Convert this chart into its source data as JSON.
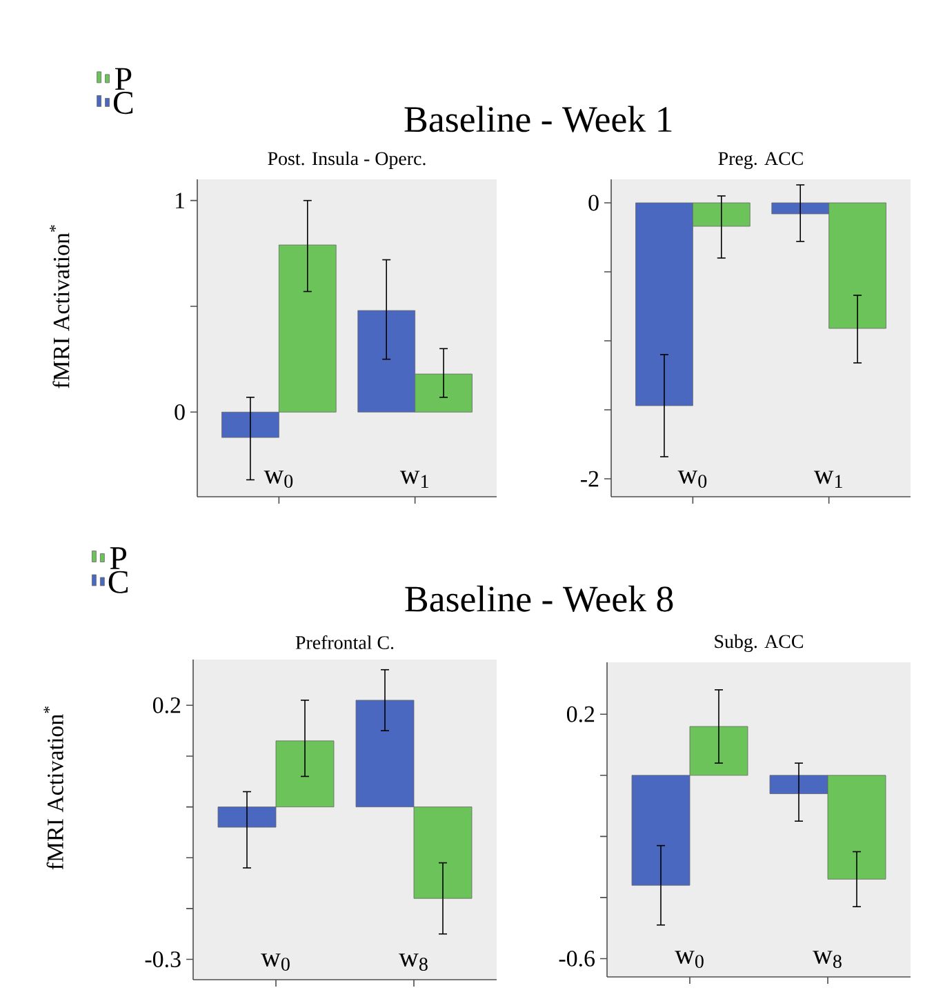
{
  "chart_data": [
    {
      "type": "bar",
      "title": "Baseline - Week 1",
      "subtitle": "Post. Insula - Operc.",
      "ylabel": "fMRI Activation$^{*}$",
      "categories": [
        "w$_{0}$",
        "w$_{1}$"
      ],
      "ylim": [
        -0.4,
        1.1
      ],
      "yticks": [
        0,
        {
          "value": 0.5,
          "label": null
        },
        1
      ],
      "legend": "top left",
      "series": [
        {
          "name": "C",
          "color": "#4a68c0",
          "values": [
            -0.12,
            0.48
          ],
          "errors": [
            [
              -0.32,
              0.07
            ],
            [
              0.25,
              0.72
            ]
          ]
        },
        {
          "name": "P",
          "color": "#6cc35a",
          "values": [
            0.79,
            0.18
          ],
          "errors": [
            [
              0.57,
              1.0
            ],
            [
              0.07,
              0.3
            ]
          ]
        }
      ]
    },
    {
      "type": "bar",
      "subtitle": "Preg. ACC",
      "categories": [
        "w$_{0}$",
        "w$_{1}$"
      ],
      "ylim": [
        -2.13,
        0.17
      ],
      "yticks": [
        -2,
        {
          "value": -1.5,
          "label": null
        },
        {
          "value": -1,
          "label": null
        },
        {
          "value": -0.5,
          "label": null
        },
        0
      ],
      "series": [
        {
          "color": "#4a68c0",
          "values": [
            -1.47,
            -0.08
          ],
          "errors": [
            [
              -1.84,
              -1.1
            ],
            [
              -0.28,
              0.13
            ]
          ]
        },
        {
          "color": "#6cc35a",
          "values": [
            -0.17,
            -0.91
          ],
          "errors": [
            [
              -0.4,
              0.05
            ],
            [
              -1.16,
              -0.67
            ]
          ]
        }
      ]
    },
    {
      "type": "bar",
      "title": "Baseline - Week 8",
      "subtitle": "Prefrontal C.",
      "ylabel": "fMRI Activation$^{*}$",
      "categories": [
        "w$_{0}$",
        "w$_{8}$"
      ],
      "ylim": [
        -0.34,
        0.29
      ],
      "yticks": [
        -0.3,
        {
          "value": -0.2,
          "label": null
        },
        {
          "value": -0.1,
          "label": null
        },
        {
          "value": 0,
          "label": null
        },
        {
          "value": 0.1,
          "label": null
        },
        0.2
      ],
      "legend": "top left",
      "series": [
        {
          "name": "C",
          "color": "#4a68c0",
          "values": [
            -0.04,
            0.21
          ],
          "errors": [
            [
              -0.12,
              0.03
            ],
            [
              0.15,
              0.27
            ]
          ]
        },
        {
          "name": "P",
          "color": "#6cc35a",
          "values": [
            0.13,
            -0.18
          ],
          "errors": [
            [
              0.06,
              0.21
            ],
            [
              -0.25,
              -0.11
            ]
          ]
        }
      ]
    },
    {
      "type": "bar",
      "subtitle": "Subg. ACC",
      "categories": [
        "w$_{0}$",
        "w$_{8}$"
      ],
      "ylim": [
        -0.66,
        0.37
      ],
      "yticks": [
        -0.6,
        {
          "value": -0.4,
          "label": null
        },
        {
          "value": -0.2,
          "label": null
        },
        {
          "value": 0,
          "label": null
        },
        0.2
      ],
      "series": [
        {
          "color": "#4a68c0",
          "values": [
            -0.36,
            -0.06
          ],
          "errors": [
            [
              -0.49,
              -0.23
            ],
            [
              -0.15,
              0.04
            ]
          ]
        },
        {
          "color": "#6cc35a",
          "values": [
            0.16,
            -0.34
          ],
          "errors": [
            [
              0.04,
              0.28
            ],
            [
              -0.43,
              -0.25
            ]
          ]
        }
      ]
    }
  ]
}
